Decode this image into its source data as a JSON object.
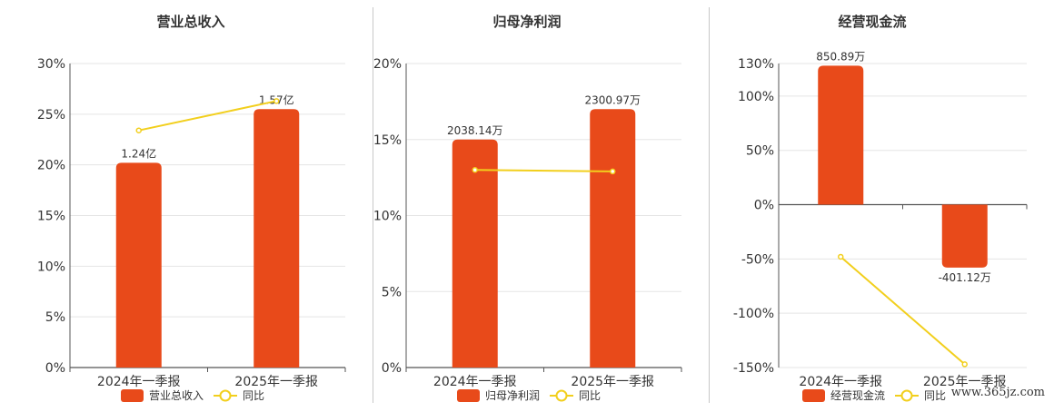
{
  "colors": {
    "bar": "#e84a1a",
    "line": "#f2cf1d",
    "axis": "#333333",
    "grid": "#e5e5e5",
    "divider": "#c8c8c8"
  },
  "watermark": "www.365jz.com",
  "chart_data": [
    {
      "type": "bar",
      "title": "营业总收入",
      "categories": [
        "2024年一季报",
        "2025年一季报"
      ],
      "series": [
        {
          "name": "营业总收入",
          "type": "bar",
          "values": [
            20.2,
            25.5
          ],
          "labels": [
            "1.24亿",
            "1.57亿"
          ]
        },
        {
          "name": "同比",
          "type": "line",
          "values": [
            23.4,
            26.3
          ]
        }
      ],
      "ylim": [
        0,
        30
      ],
      "yticks": [
        "0%",
        "5%",
        "10%",
        "15%",
        "20%",
        "25%",
        "30%"
      ],
      "ytick_values": [
        0,
        5,
        10,
        15,
        20,
        25,
        30
      ],
      "grid": true,
      "legend": "bottom"
    },
    {
      "type": "bar",
      "title": "归母净利润",
      "categories": [
        "2024年一季报",
        "2025年一季报"
      ],
      "series": [
        {
          "name": "归母净利润",
          "type": "bar",
          "values": [
            15.0,
            17.0
          ],
          "labels": [
            "2038.14万",
            "2300.97万"
          ]
        },
        {
          "name": "同比",
          "type": "line",
          "values": [
            13.0,
            12.9
          ]
        }
      ],
      "ylim": [
        0,
        20
      ],
      "yticks": [
        "0%",
        "5%",
        "10%",
        "15%",
        "20%"
      ],
      "ytick_values": [
        0,
        5,
        10,
        15,
        20
      ],
      "grid": true,
      "legend": "bottom"
    },
    {
      "type": "bar",
      "title": "经营现金流",
      "categories": [
        "2024年一季报",
        "2025年一季报"
      ],
      "series": [
        {
          "name": "经营现金流",
          "type": "bar",
          "values": [
            128,
            -58
          ],
          "labels": [
            "850.89万",
            "-401.12万"
          ]
        },
        {
          "name": "同比",
          "type": "line",
          "values": [
            -48,
            -147
          ]
        }
      ],
      "ylim": [
        -150,
        130
      ],
      "yticks": [
        "-150%",
        "-100%",
        "-50%",
        "0%",
        "50%",
        "100%",
        "130%"
      ],
      "ytick_values": [
        -150,
        -100,
        -50,
        0,
        50,
        100,
        130
      ],
      "grid": true,
      "legend": "bottom"
    }
  ]
}
